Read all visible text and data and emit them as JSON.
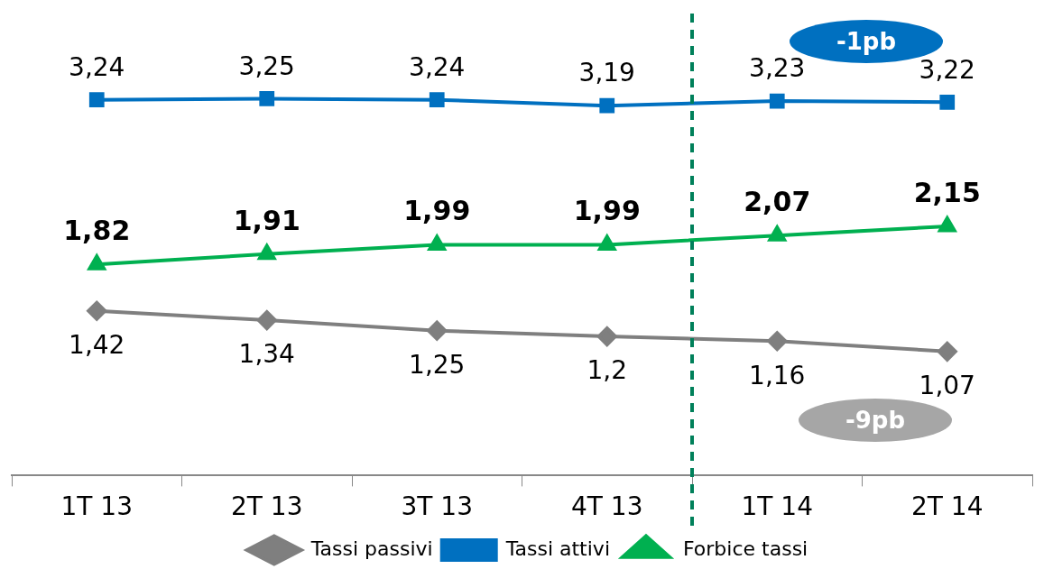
{
  "chart_data": {
    "type": "line",
    "categories": [
      "1T 13",
      "2T 13",
      "3T 13",
      "4T 13",
      "1T 14",
      "2T 14"
    ],
    "series": [
      {
        "name": "Tassi passivi",
        "color": "#7f7f7f",
        "marker": "diamond",
        "values": [
          1.42,
          1.34,
          1.25,
          1.2,
          1.16,
          1.07
        ],
        "value_labels": [
          "1,42",
          "1,34",
          "1,25",
          "1,2",
          "1,16",
          "1,07"
        ]
      },
      {
        "name": "Tassi attivi",
        "color": "#0070c0",
        "marker": "square",
        "values": [
          3.24,
          3.25,
          3.24,
          3.19,
          3.23,
          3.22
        ],
        "value_labels": [
          "3,24",
          "3,25",
          "3,24",
          "3,19",
          "3,23",
          "3,22"
        ]
      },
      {
        "name": "Forbice tassi",
        "color": "#00b050",
        "marker": "triangle",
        "values": [
          1.82,
          1.91,
          1.99,
          1.99,
          2.07,
          2.15
        ],
        "value_labels": [
          "1,82",
          "1,91",
          "1,99",
          "1,99",
          "2,07",
          "2,15"
        ]
      }
    ],
    "tick_labels": "x",
    "grid": false,
    "legend": "bottom",
    "annotations": [
      "-1pb",
      "-9pb"
    ]
  }
}
